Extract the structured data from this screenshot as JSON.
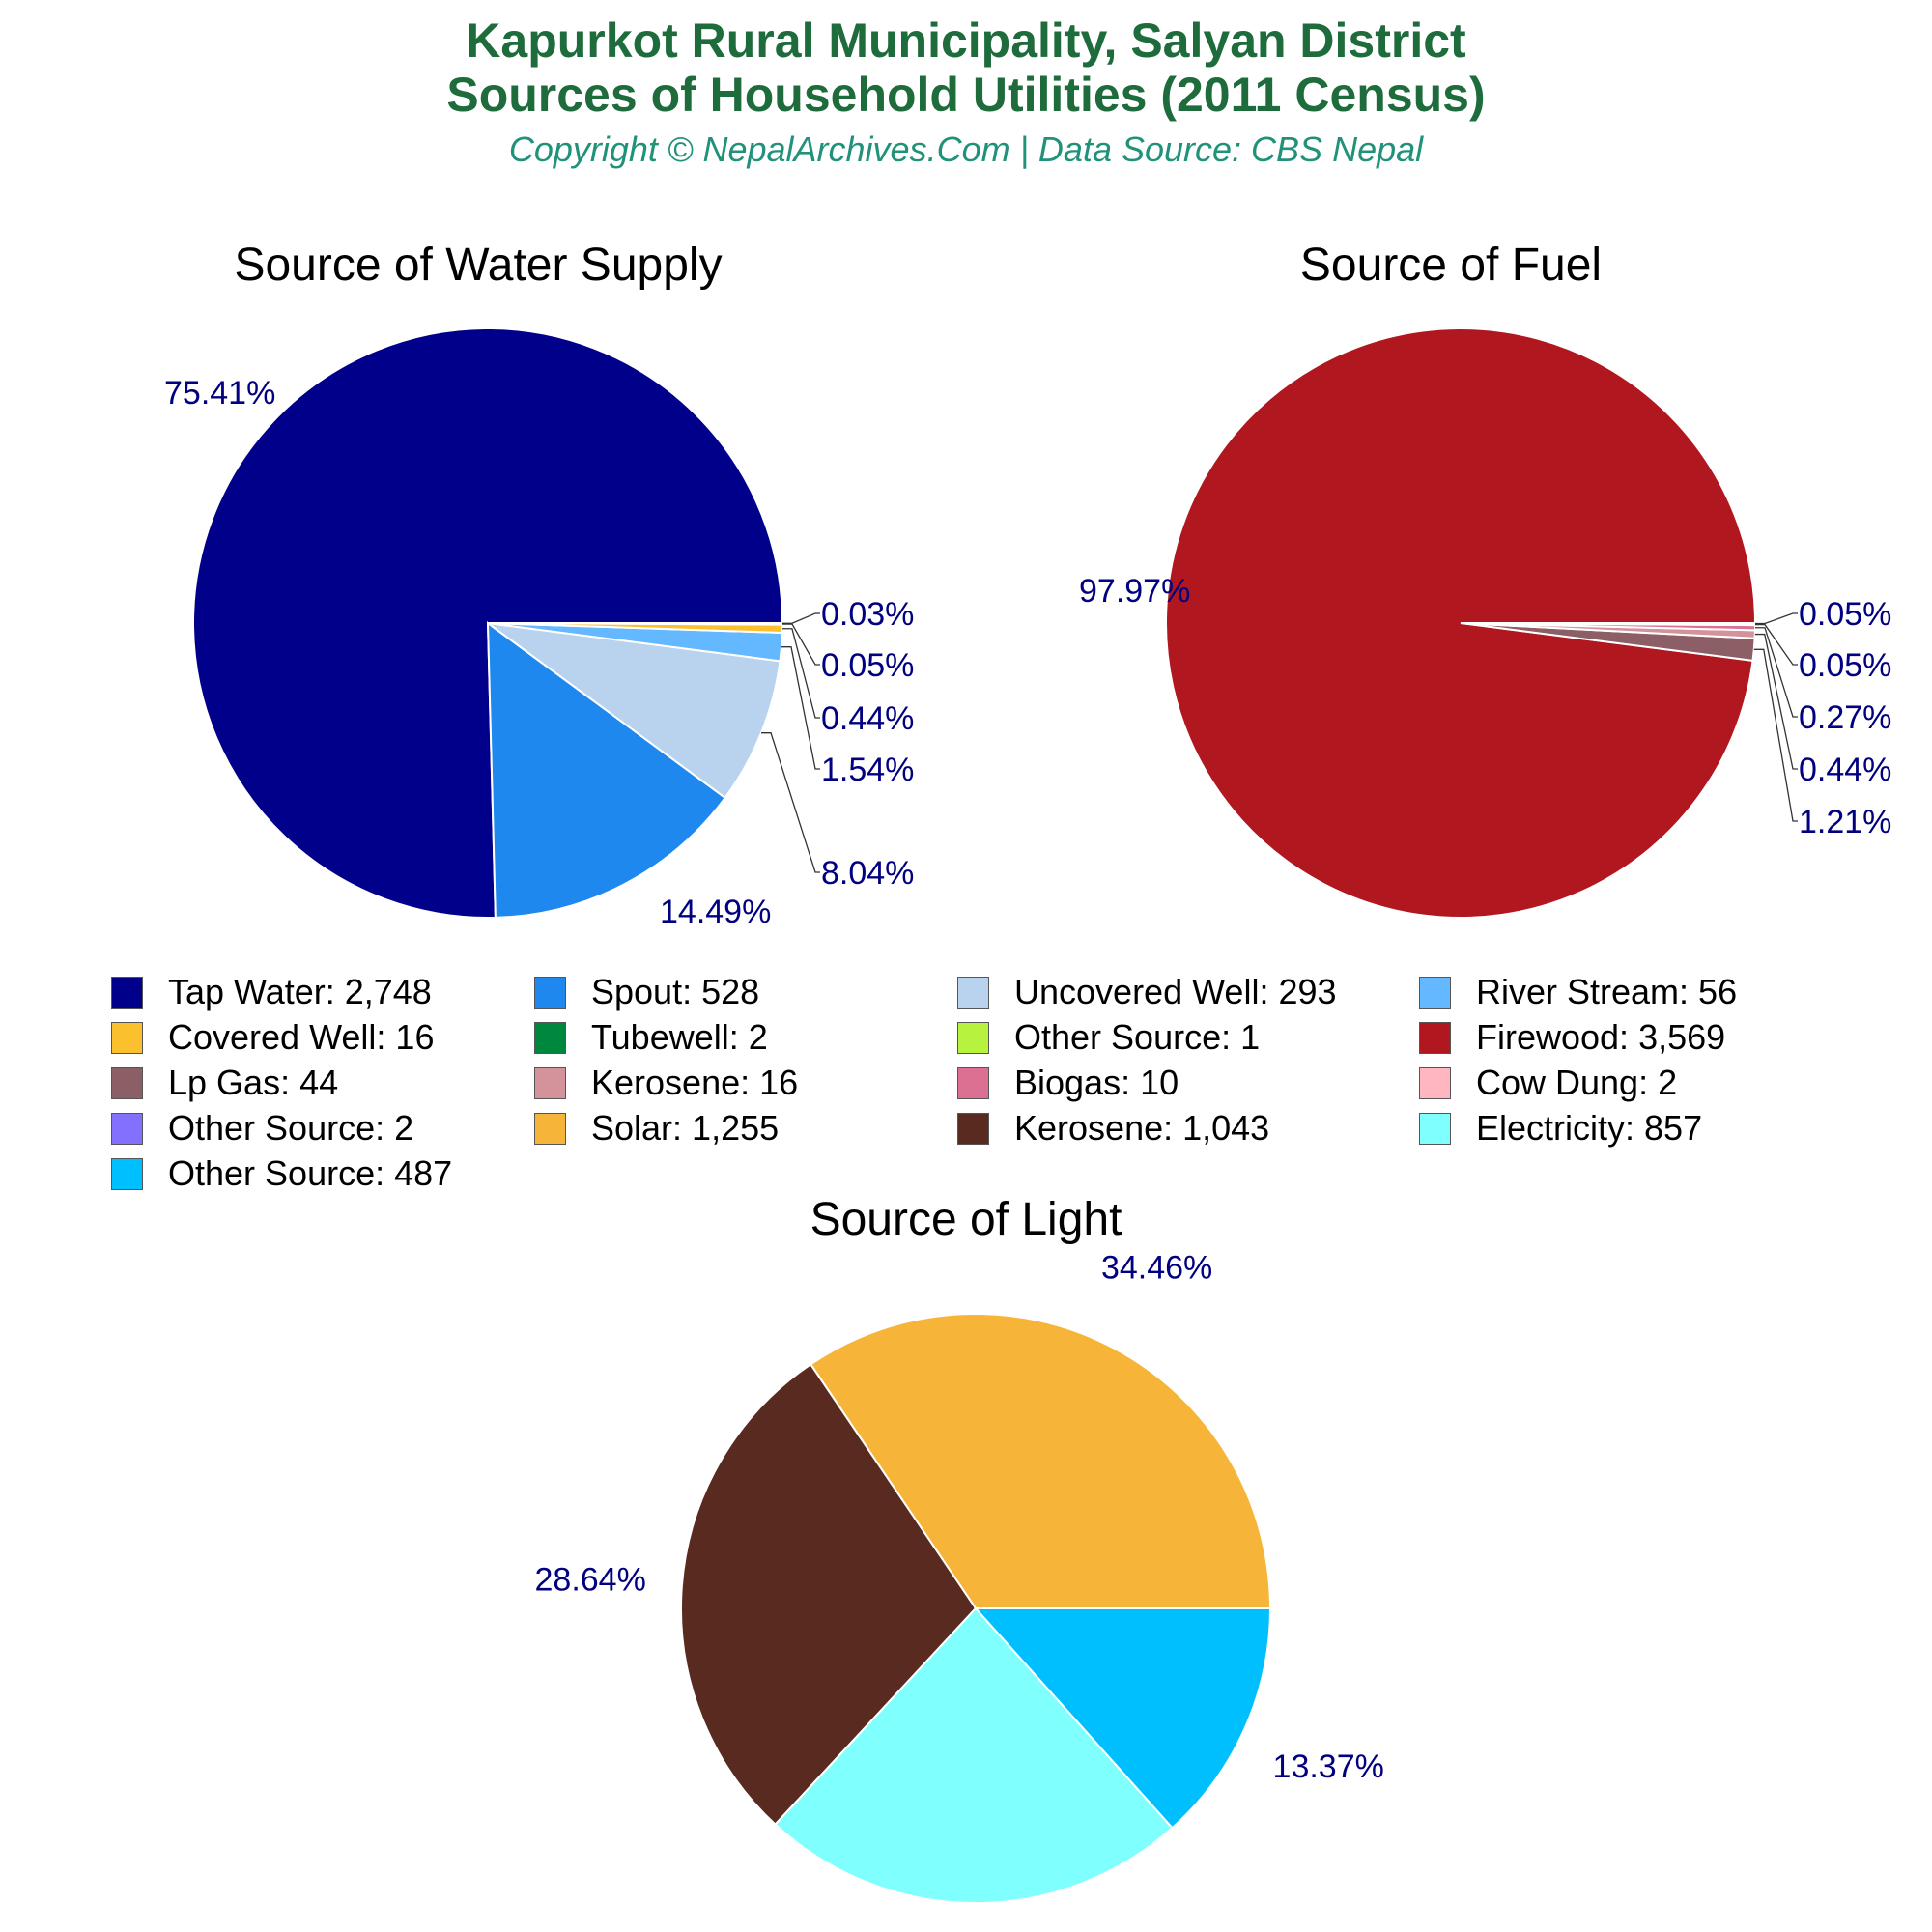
{
  "header": {
    "title_line1": "Kapurkot Rural Municipality, Salyan District",
    "title_line2": "Sources of Household Utilities (2011 Census)",
    "subtitle": "Copyright © NepalArchives.Com | Data Source: CBS Nepal"
  },
  "chart_data": [
    {
      "type": "pie",
      "title": "Source of Water Supply",
      "slices": [
        {
          "label": "Tap Water",
          "value": 2748,
          "percent": "75.41%",
          "color": "#00008b"
        },
        {
          "label": "Spout",
          "value": 528,
          "percent": "14.49%",
          "color": "#1e88ee"
        },
        {
          "label": "Uncovered Well",
          "value": 293,
          "percent": "8.04%",
          "color": "#b9d3ef"
        },
        {
          "label": "River Stream",
          "value": 56,
          "percent": "1.54%",
          "color": "#63b8ff"
        },
        {
          "label": "Covered Well",
          "value": 16,
          "percent": "0.44%",
          "color": "#fbc02d"
        },
        {
          "label": "Tubewell",
          "value": 2,
          "percent": "0.05%",
          "color": "#00873e"
        },
        {
          "label": "Other Source",
          "value": 1,
          "percent": "0.03%",
          "color": "#b7f23e"
        }
      ]
    },
    {
      "type": "pie",
      "title": "Source of Fuel",
      "slices": [
        {
          "label": "Firewood",
          "value": 3569,
          "percent": "97.97%",
          "color": "#b0171f"
        },
        {
          "label": "Lp Gas",
          "value": 44,
          "percent": "1.21%",
          "color": "#8b5f65"
        },
        {
          "label": "Kerosene",
          "value": 16,
          "percent": "0.44%",
          "color": "#d4929a"
        },
        {
          "label": "Biogas",
          "value": 10,
          "percent": "0.27%",
          "color": "#db7093"
        },
        {
          "label": "Cow Dung",
          "value": 2,
          "percent": "0.05%",
          "color": "#ffb6c1"
        },
        {
          "label": "Other Source",
          "value": 2,
          "percent": "0.05%",
          "color": "#8470ff"
        }
      ]
    },
    {
      "type": "pie",
      "title": "Source of Light",
      "slices": [
        {
          "label": "Solar",
          "value": 1255,
          "percent": "34.46%",
          "color": "#f6b539"
        },
        {
          "label": "Kerosene",
          "value": 1043,
          "percent": "28.64%",
          "color": "#582a20"
        },
        {
          "label": "Electricity",
          "value": 857,
          "percent": "23.53%",
          "color": "#80ffff"
        },
        {
          "label": "Other Source",
          "value": 487,
          "percent": "13.37%",
          "color": "#00bfff"
        }
      ]
    }
  ],
  "legend": {
    "items": [
      {
        "text": "Tap Water: 2,748",
        "color": "#00008b"
      },
      {
        "text": "Spout: 528",
        "color": "#1e88ee"
      },
      {
        "text": "Uncovered Well: 293",
        "color": "#b9d3ef"
      },
      {
        "text": "River Stream: 56",
        "color": "#63b8ff"
      },
      {
        "text": "Covered Well: 16",
        "color": "#fbc02d"
      },
      {
        "text": "Tubewell: 2",
        "color": "#00873e"
      },
      {
        "text": "Other Source: 1",
        "color": "#b7f23e"
      },
      {
        "text": "Firewood: 3,569",
        "color": "#b0171f"
      },
      {
        "text": "Lp Gas: 44",
        "color": "#8b5f65"
      },
      {
        "text": "Kerosene: 16",
        "color": "#d4929a"
      },
      {
        "text": "Biogas: 10",
        "color": "#db7093"
      },
      {
        "text": "Cow Dung: 2",
        "color": "#ffb6c1"
      },
      {
        "text": "Other Source: 2",
        "color": "#8470ff"
      },
      {
        "text": "Solar: 1,255",
        "color": "#f6b539"
      },
      {
        "text": "Kerosene: 1,043",
        "color": "#582a20"
      },
      {
        "text": "Electricity: 857",
        "color": "#80ffff"
      },
      {
        "text": "Other Source: 487",
        "color": "#00bfff"
      }
    ]
  }
}
